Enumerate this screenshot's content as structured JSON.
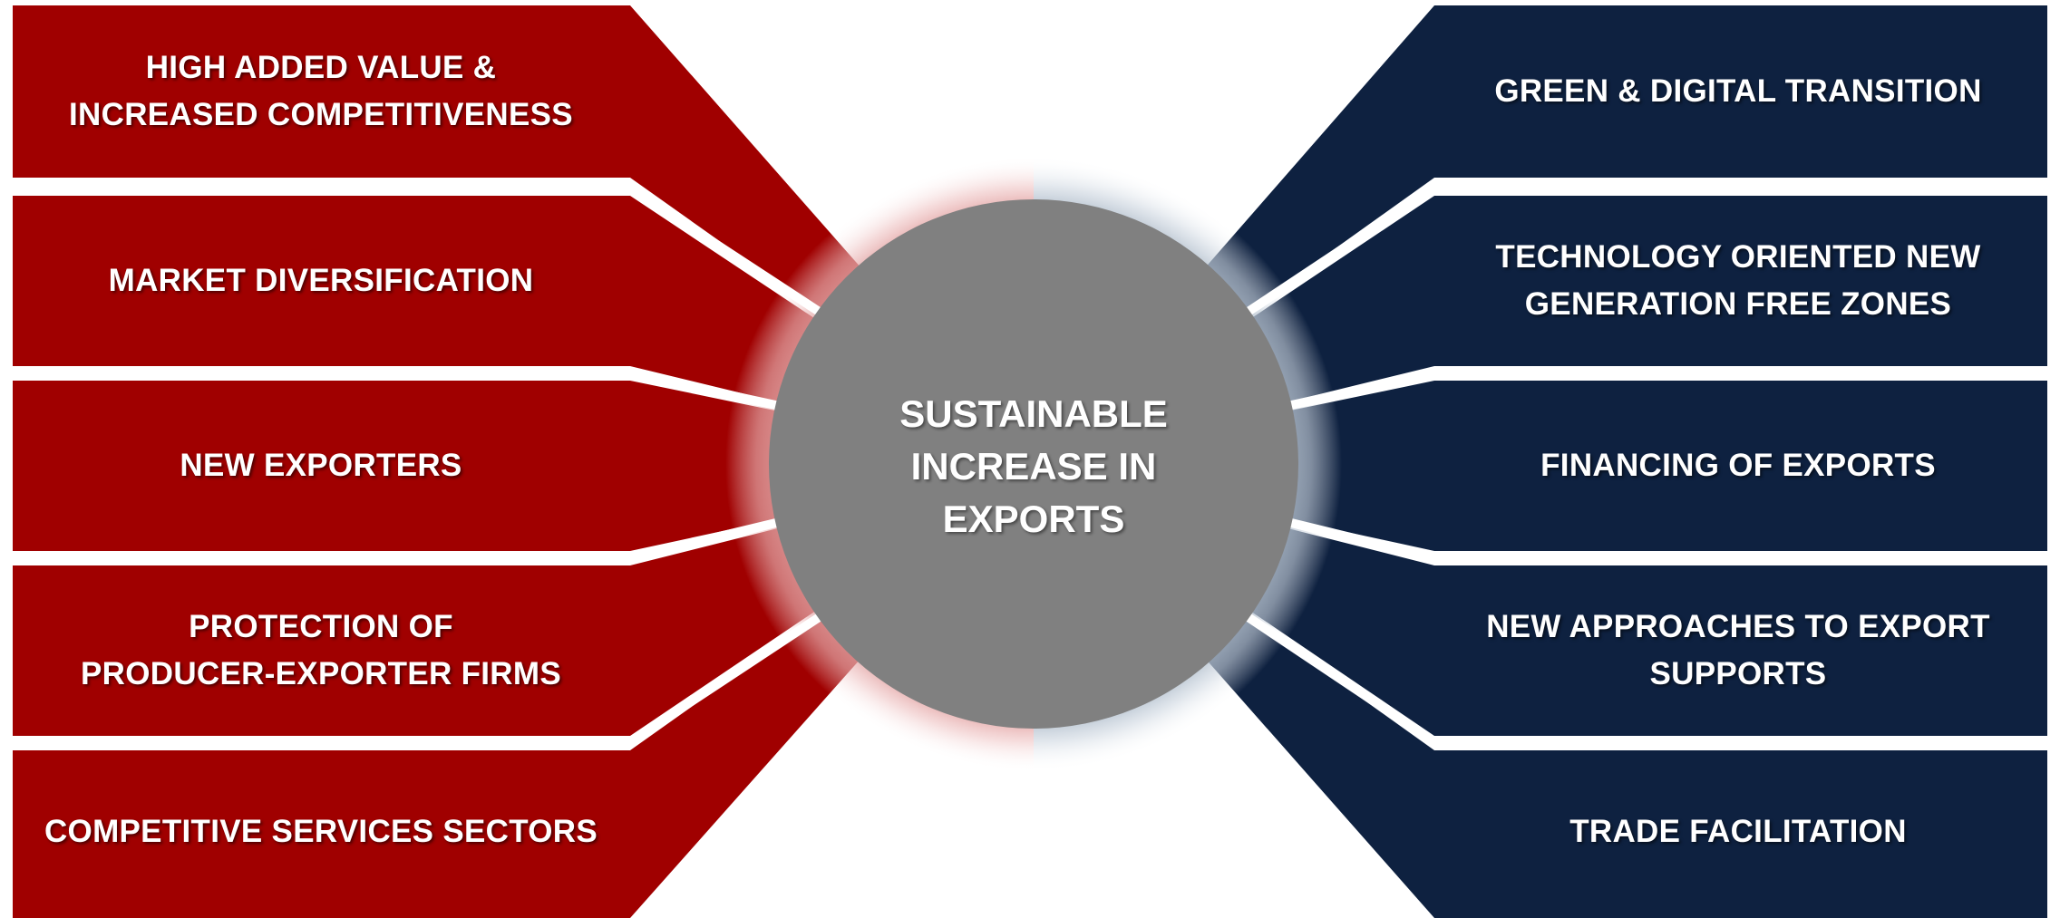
{
  "colors": {
    "left_panel": "#a00000",
    "right_panel": "#0e2140",
    "center_circle": "#808080",
    "left_glow": "#d98a8a",
    "right_glow": "#9aaabb"
  },
  "center": {
    "label": "SUSTAINABLE\nINCREASE IN\nEXPORTS"
  },
  "left_items": [
    {
      "label": "HIGH ADDED VALUE &\nINCREASED COMPETITIVENESS"
    },
    {
      "label": "MARKET DIVERSIFICATION"
    },
    {
      "label": "NEW EXPORTERS"
    },
    {
      "label": "PROTECTION OF\nPRODUCER-EXPORTER FIRMS"
    },
    {
      "label": "COMPETITIVE SERVICES SECTORS"
    }
  ],
  "right_items": [
    {
      "label": "GREEN & DIGITAL TRANSITION"
    },
    {
      "label": "TECHNOLOGY ORIENTED NEW\nGENERATION FREE ZONES"
    },
    {
      "label": "FINANCING OF EXPORTS"
    },
    {
      "label": "NEW APPROACHES TO EXPORT\nSUPPORTS"
    },
    {
      "label": "TRADE FACILITATION"
    }
  ]
}
